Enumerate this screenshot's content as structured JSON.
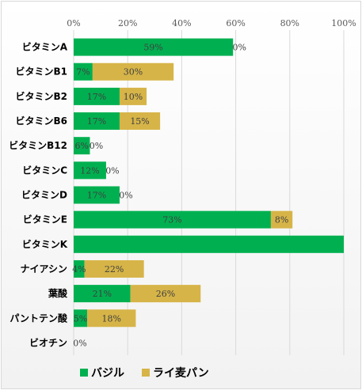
{
  "chart_data": {
    "type": "bar",
    "orientation": "horizontal",
    "stacked": true,
    "categories": [
      "ビタミンA",
      "ビタミンB1",
      "ビタミンB2",
      "ビタミンB6",
      "ビタミンB12",
      "ビタミンC",
      "ビタミンD",
      "ビタミンE",
      "ビタミンK",
      "ナイアシン",
      "葉酸",
      "パントテン酸",
      "ビオチン"
    ],
    "series": [
      {
        "name": "バジル",
        "color": "#00b050",
        "values": [
          59,
          7,
          17,
          17,
          6,
          12,
          17,
          73,
          100,
          4,
          21,
          5,
          0
        ]
      },
      {
        "name": "ライ麦パン",
        "color": "#d6b448",
        "values": [
          0,
          30,
          10,
          15,
          0,
          0,
          0,
          8,
          0,
          22,
          26,
          18,
          0
        ]
      }
    ],
    "data_labels": [
      [
        "59%",
        "7%",
        "17%",
        "17%",
        "6%",
        "12%",
        "17%",
        "73%",
        "",
        "4%",
        "21%",
        "5%",
        "0%"
      ],
      [
        "0%",
        "30%",
        "10%",
        "15%",
        "0%",
        "0%",
        "0%",
        "8%",
        "",
        "22%",
        "26%",
        "18%",
        ""
      ]
    ],
    "xticks": [
      "0%",
      "20%",
      "40%",
      "60%",
      "80%",
      "100%"
    ],
    "xlim": [
      0,
      100
    ],
    "grid": true,
    "legend": "bottom",
    "title": "",
    "xlabel": "",
    "ylabel": ""
  }
}
